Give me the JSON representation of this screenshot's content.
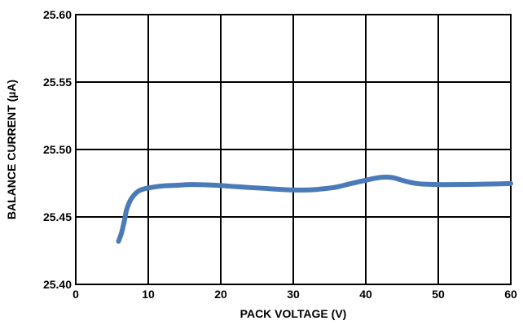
{
  "chart_data": {
    "type": "line",
    "title": "",
    "xlabel": "PACK VOLTAGE (V)",
    "ylabel": "BALANCE CURRENT (µA)",
    "xlim": [
      0,
      60
    ],
    "ylim": [
      25.4,
      25.6
    ],
    "x_ticks": [
      0,
      10,
      20,
      30,
      40,
      50,
      60
    ],
    "x_tick_labels": [
      "0",
      "10",
      "20",
      "30",
      "40",
      "50",
      "60"
    ],
    "y_ticks": [
      25.4,
      25.45,
      25.5,
      25.55,
      25.6
    ],
    "y_tick_labels": [
      "25.40",
      "25.45",
      "25.50",
      "25.55",
      "25.60"
    ],
    "grid": true,
    "series_color": "#4a7ab8",
    "series": [
      {
        "x": [
          5.9,
          6.3,
          6.7,
          7.0,
          7.5,
          8.0,
          8.6,
          9.2,
          10.0,
          12,
          14,
          16,
          18,
          20,
          22,
          24,
          26,
          28,
          30,
          32,
          34,
          36,
          38,
          40,
          41,
          42,
          43,
          44,
          45,
          46,
          47,
          48,
          50,
          52,
          55,
          58,
          60
        ],
        "y": [
          25.432,
          25.438,
          25.447,
          25.455,
          25.462,
          25.466,
          25.469,
          25.4705,
          25.4715,
          25.473,
          25.4735,
          25.474,
          25.4738,
          25.4733,
          25.4725,
          25.4718,
          25.4712,
          25.4705,
          25.47,
          25.47,
          25.4708,
          25.4722,
          25.4748,
          25.4772,
          25.4784,
          25.4793,
          25.4795,
          25.4788,
          25.4772,
          25.4758,
          25.4748,
          25.4743,
          25.474,
          25.474,
          25.4742,
          25.4745,
          25.4748
        ]
      }
    ]
  }
}
